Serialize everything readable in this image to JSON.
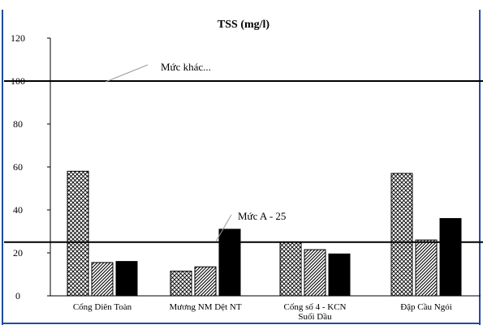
{
  "chart_data": {
    "type": "bar",
    "title": "TSS (mg/l)",
    "xlabel": "",
    "ylabel": "",
    "ylim": [
      0,
      120
    ],
    "yticks": [
      "0",
      "20",
      "40",
      "60",
      "80",
      "100",
      "120"
    ],
    "categories": [
      [
        "Cống Diên Toàn"
      ],
      [
        "Mương NM Dệt NT"
      ],
      [
        "Cống số 4 - KCN",
        "Suối Dầu"
      ],
      [
        "Đập Cầu Ngói"
      ]
    ],
    "series": [
      {
        "pattern": "crosshatch",
        "values": [
          58,
          11.5,
          25,
          57
        ]
      },
      {
        "pattern": "diagonal",
        "values": [
          15.5,
          13.5,
          21.5,
          26
        ]
      },
      {
        "pattern": "solid",
        "color": "#000000",
        "values": [
          16,
          31,
          19.5,
          36
        ]
      }
    ],
    "reference_lines": [
      {
        "label": "Mức khác...",
        "value": 100
      },
      {
        "label": "Mức A - 25",
        "value": 25
      }
    ],
    "grid": false,
    "legend": "none",
    "frame_border_color": "#1f4e9e"
  }
}
